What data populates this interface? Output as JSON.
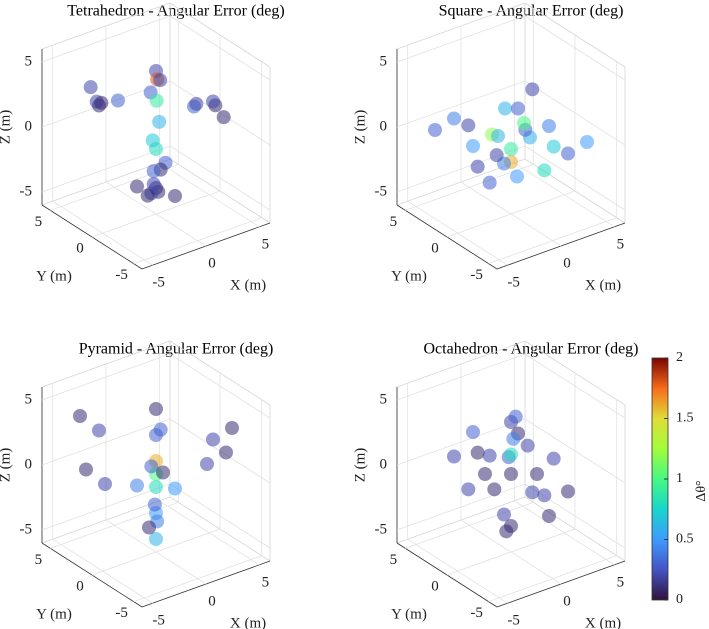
{
  "chart_data": [
    {
      "type": "scatter3d",
      "title": "Tetrahedron - Angular Error (deg)",
      "xlabel": "X (m)",
      "ylabel": "Y (m)",
      "zlabel": "Z (m)",
      "xlim": [
        -6,
        6
      ],
      "ylim": [
        -6,
        6
      ],
      "zlim": [
        -6,
        6
      ],
      "xticks": [
        -5,
        0,
        5
      ],
      "yticks": [
        -5,
        0,
        5
      ],
      "zticks": [
        -5,
        0,
        5
      ],
      "grid": true,
      "x": [
        0,
        0.5,
        -0.5,
        0,
        0.3,
        -3,
        -4,
        -2,
        -3,
        -2,
        4,
        3,
        4,
        2,
        3,
        0,
        1,
        -1,
        0.5,
        1,
        -1,
        0,
        0.3,
        0,
        -2,
        2,
        0,
        -1
      ],
      "y": [
        0,
        0.5,
        0,
        -0.5,
        0.3,
        3,
        2,
        4,
        4,
        2,
        -2,
        -3,
        -3,
        -2,
        -1,
        0,
        1,
        -1,
        -0.5,
        -1,
        1,
        0,
        0,
        0.4,
        -2,
        2,
        1,
        -1
      ],
      "z": [
        5,
        4,
        3.5,
        4.5,
        2.5,
        2,
        3,
        1.5,
        3,
        2.5,
        2,
        3,
        1.5,
        2.5,
        2,
        -4,
        -5,
        -3,
        -2,
        -4.5,
        -4,
        -1,
        1,
        -0.5,
        -3,
        -4,
        -5,
        -2
      ],
      "values": [
        0.2,
        1.8,
        0.3,
        0.2,
        0.9,
        0.1,
        0.2,
        0.1,
        0.2,
        0.3,
        0.1,
        0.2,
        0.1,
        0.3,
        0.2,
        0.1,
        0.1,
        0.2,
        0.3,
        0.1,
        0.1,
        0.8,
        0.6,
        0.7,
        0.2,
        0.1,
        0.1,
        0.3
      ]
    },
    {
      "type": "scatter3d",
      "title": "Square - Angular Error (deg)",
      "xlabel": "X (m)",
      "ylabel": "Y (m)",
      "zlabel": "Z (m)",
      "xlim": [
        -6,
        6
      ],
      "ylim": [
        -6,
        6
      ],
      "zlim": [
        -6,
        6
      ],
      "xticks": [
        -5,
        0,
        5
      ],
      "yticks": [
        -5,
        0,
        5
      ],
      "zticks": [
        -5,
        0,
        5
      ],
      "grid": true,
      "x": [
        -4,
        -3,
        -2,
        -1,
        0,
        1,
        2,
        3,
        4,
        -4,
        -2,
        0,
        2,
        4,
        -3,
        -1,
        1,
        3,
        0,
        1,
        -1,
        2,
        -2,
        0
      ],
      "y": [
        4,
        3,
        2,
        1,
        0,
        -1,
        -2,
        -3,
        -4,
        0,
        0,
        0,
        0,
        0,
        -3,
        -2,
        2,
        3,
        -4,
        3,
        -3,
        1,
        -1,
        4
      ],
      "z": [
        0,
        1,
        -1,
        0,
        -2,
        0,
        1,
        -1,
        0,
        2,
        -3,
        -1,
        3,
        -2,
        0,
        -2,
        1,
        0,
        -1,
        -3,
        2,
        0,
        1,
        -4
      ],
      "values": [
        0.3,
        0.4,
        0.5,
        1.2,
        1.6,
        0.6,
        0.4,
        0.3,
        0.5,
        0.2,
        0.3,
        0.9,
        0.2,
        0.7,
        0.4,
        0.5,
        0.6,
        0.3,
        0.8,
        0.2,
        0.3,
        1.0,
        0.6,
        0.2
      ]
    },
    {
      "type": "scatter3d",
      "title": "Pyramid - Angular Error (deg)",
      "xlabel": "X (m)",
      "ylabel": "Y (m)",
      "zlabel": "Z (m)",
      "xlim": [
        -6,
        6
      ],
      "ylim": [
        -6,
        6
      ],
      "zlim": [
        -6,
        6
      ],
      "xticks": [
        -5,
        0,
        5
      ],
      "yticks": [
        -5,
        0,
        5
      ],
      "zticks": [
        -5,
        0,
        5
      ],
      "grid": true,
      "x": [
        0,
        0,
        0,
        -3,
        -4,
        3,
        4,
        -4,
        -5,
        4,
        5,
        0,
        0,
        0.5,
        -0.5,
        0,
        2,
        -2,
        1,
        -1,
        0,
        3,
        -3
      ],
      "y": [
        0,
        0,
        0,
        3,
        4,
        -3,
        -4,
        1,
        2,
        -1,
        -2,
        0,
        0,
        0.5,
        -0.5,
        0,
        2,
        -2,
        -1,
        1,
        0,
        3,
        -3
      ],
      "z": [
        3,
        1,
        -1,
        3,
        4,
        3,
        4,
        0,
        1,
        0,
        1,
        -3,
        -5,
        -4,
        -2,
        0,
        2,
        2,
        -1,
        -1,
        5,
        -2,
        -2
      ],
      "values": [
        0.3,
        1.6,
        0.8,
        0.2,
        0.1,
        0.2,
        0.1,
        0.2,
        0.1,
        0.2,
        0.1,
        0.5,
        0.6,
        0.4,
        0.3,
        1.0,
        0.3,
        0.3,
        0.5,
        0.4,
        0.1,
        0.1,
        0.1
      ]
    },
    {
      "type": "scatter3d",
      "title": "Octahedron - Angular Error (deg)",
      "xlabel": "X (m)",
      "ylabel": "Y (m)",
      "zlabel": "Z (m)",
      "xlim": [
        -6,
        6
      ],
      "ylim": [
        -6,
        6
      ],
      "zlim": [
        -6,
        6
      ],
      "xticks": [
        -5,
        0,
        5
      ],
      "yticks": [
        -5,
        0,
        5
      ],
      "zticks": [
        -5,
        0,
        5
      ],
      "grid": true,
      "x": [
        0,
        4,
        -4,
        0,
        0,
        0,
        0,
        3,
        -3,
        3,
        -3,
        2,
        -2,
        2,
        -2,
        1,
        -1,
        0,
        2,
        -2,
        0,
        4,
        -4,
        0
      ],
      "y": [
        0,
        0,
        0,
        4,
        -4,
        0,
        0,
        3,
        -3,
        -3,
        3,
        2,
        -2,
        -2,
        2,
        1,
        -1,
        2,
        0,
        0,
        -2,
        2,
        -2,
        0
      ],
      "z": [
        0,
        0,
        0,
        0,
        0,
        4,
        -4,
        1,
        -1,
        -1,
        1,
        3,
        -3,
        -3,
        3,
        2,
        2,
        -2,
        -2,
        2,
        3,
        -2,
        2,
        1.5
      ],
      "values": [
        0.1,
        0.2,
        0.2,
        0.1,
        0.2,
        0.2,
        0.1,
        0.1,
        0.2,
        0.1,
        0.2,
        0.3,
        0.1,
        0.1,
        0.3,
        0.4,
        0.3,
        0.1,
        0.2,
        0.2,
        0.2,
        0.1,
        0.1,
        0.8
      ],
      "colorbar": {
        "label": "Δθ°",
        "clim": [
          0,
          2
        ],
        "ticks": [
          0,
          0.5,
          1,
          1.5,
          2
        ],
        "colormap": "turbo"
      }
    }
  ]
}
